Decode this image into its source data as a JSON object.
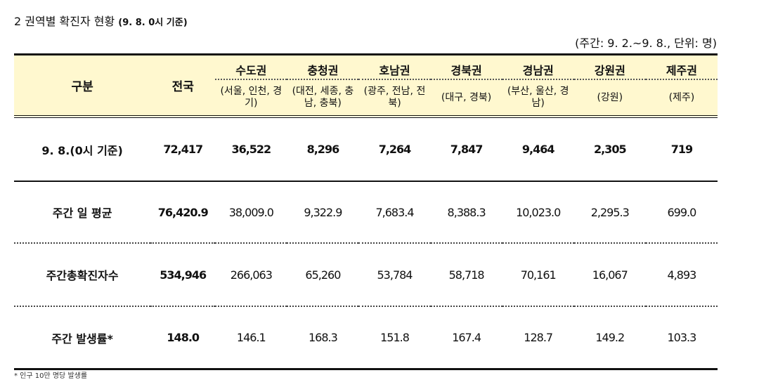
{
  "title": {
    "main": "2  권역별 확진자 현황",
    "date": "(9. 8. 0시 기준)"
  },
  "unit": "(주간: 9. 2.~9. 8., 단위: 명)",
  "header": {
    "col0": "구분",
    "col1": "전국",
    "regions": [
      {
        "name": "수도권",
        "sub": "(서울, 인천, 경기)"
      },
      {
        "name": "충청권",
        "sub": "(대전, 세종, 충남, 충북)"
      },
      {
        "name": "호남권",
        "sub": "(광주, 전남, 전북)"
      },
      {
        "name": "경북권",
        "sub": "(대구, 경북)"
      },
      {
        "name": "경남권",
        "sub": "(부산, 울산, 경남)"
      },
      {
        "name": "강원권",
        "sub": "(강원)"
      },
      {
        "name": "제주권",
        "sub": "(제주)"
      }
    ]
  },
  "rows": [
    {
      "label": "9. 8.(0시 기준)",
      "values": [
        "72,417",
        "36,522",
        "8,296",
        "7,264",
        "7,847",
        "9,464",
        "2,305",
        "719"
      ]
    },
    {
      "label": "주간 일 평균",
      "values": [
        "76,420.9",
        "38,009.0",
        "9,322.9",
        "7,683.4",
        "8,388.3",
        "10,023.0",
        "2,295.3",
        "699.0"
      ]
    },
    {
      "label": "주간총확진자수",
      "values": [
        "534,946",
        "266,063",
        "65,260",
        "53,784",
        "58,718",
        "70,161",
        "16,067",
        "4,893"
      ]
    },
    {
      "label": "주간 발생률*",
      "values": [
        "148.0",
        "146.1",
        "168.3",
        "151.8",
        "167.4",
        "128.7",
        "149.2",
        "103.3"
      ]
    }
  ],
  "footnote": "* 인구 10만 명당 발생률"
}
